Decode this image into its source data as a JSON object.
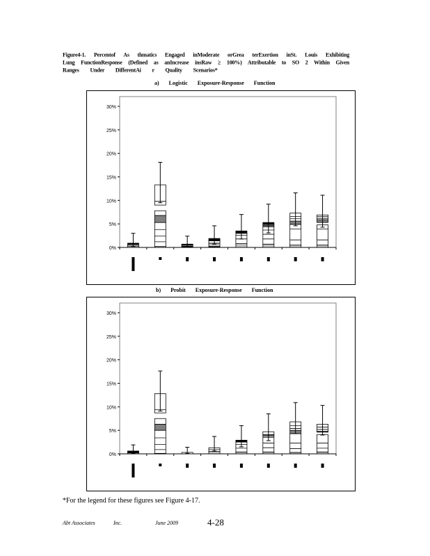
{
  "caption": {
    "lines": [
      "Figure4-1.  Percentof  As thmatics  Engaged  inModerate  orGrea terExertion  inSt. Louis Exhibiting",
      "Lung FunctionResponse  (Defined as anIncrease  insRaw  ≥ 100%)  Attributable  to SO 2 Within  Given",
      "Ranges  Under  DifferentAi r Quality  Scenarios*"
    ]
  },
  "chart_data": [
    {
      "type": "bar",
      "title": "a)  Logistic  Exposure-Response  Function",
      "ylim": [
        0,
        30
      ],
      "yticks": [
        "0%",
        "5%",
        "10%",
        "15%",
        "20%",
        "25%",
        "30%"
      ],
      "colors": {
        "gray": "#808080",
        "lightgray": "#c0c0c0",
        "black": "#000000"
      },
      "bars": [
        {
          "segments": [
            [
              0,
              0.3,
              "lightgray"
            ],
            [
              0.3,
              0.6,
              "white"
            ],
            [
              0.6,
              0.9,
              "black"
            ]
          ],
          "lines": [],
          "whisker": [
            0.2,
            3.0
          ]
        },
        {
          "segments": [
            [
              0,
              0.2,
              "lightgray"
            ],
            [
              0.2,
              5.3,
              "white"
            ],
            [
              5.3,
              6.8,
              "gray"
            ],
            [
              6.8,
              7.8,
              "white"
            ],
            [
              9.0,
              13.3,
              "white"
            ]
          ],
          "lines": [
            1.2,
            2.4,
            3.8,
            9.8
          ],
          "whisker": [
            9.5,
            18.1
          ]
        },
        {
          "segments": [
            [
              0,
              0.3,
              "black"
            ],
            [
              0.3,
              0.5,
              "white"
            ],
            [
              0.5,
              0.7,
              "black"
            ]
          ],
          "lines": [],
          "whisker": [
            0.1,
            2.4
          ]
        },
        {
          "segments": [
            [
              0,
              0.2,
              "black"
            ],
            [
              0.2,
              0.9,
              "lightgray"
            ],
            [
              0.9,
              1.4,
              "white"
            ],
            [
              1.4,
              1.9,
              "black"
            ]
          ],
          "lines": [],
          "whisker": [
            0.7,
            4.6
          ]
        },
        {
          "segments": [
            [
              0,
              0.8,
              "lightgray"
            ],
            [
              0.8,
              3.0,
              "white"
            ],
            [
              3.0,
              3.5,
              "black"
            ]
          ],
          "lines": [
            1.8,
            2.6
          ],
          "whisker": [
            1.8,
            7.0
          ]
        },
        {
          "segments": [
            [
              0,
              0.7,
              "lightgray"
            ],
            [
              0.7,
              4.4,
              "white"
            ],
            [
              4.4,
              4.7,
              "gray"
            ],
            [
              4.7,
              4.9,
              "white"
            ],
            [
              4.9,
              5.3,
              "black"
            ]
          ],
          "lines": [
            1.8,
            2.8,
            3.7
          ],
          "whisker": [
            3.1,
            9.2
          ]
        },
        {
          "segments": [
            [
              0,
              0.5,
              "lightgray"
            ],
            [
              0.5,
              4.9,
              "white"
            ],
            [
              4.9,
              5.6,
              "gray"
            ],
            [
              5.6,
              7.3,
              "white"
            ]
          ],
          "lines": [
            1.6,
            3.9,
            6.1,
            6.6
          ],
          "whisker": [
            4.6,
            11.6
          ]
        },
        {
          "segments": [
            [
              0,
              0.5,
              "lightgray"
            ],
            [
              0.5,
              4.8,
              "white"
            ],
            [
              5.3,
              5.9,
              "gray"
            ],
            [
              5.9,
              6.9,
              "white"
            ]
          ],
          "lines": [
            1.6,
            3.9,
            6.2,
            6.6
          ],
          "whisker": [
            4.3,
            11.1
          ]
        }
      ]
    },
    {
      "type": "bar",
      "title": "b)  Probit  Exposure-Response  Function",
      "ylim": [
        0,
        30
      ],
      "yticks": [
        "0%",
        "5%",
        "10%",
        "15%",
        "20%",
        "25%",
        "30%"
      ],
      "colors": {
        "gray": "#808080",
        "lightgray": "#c0c0c0",
        "black": "#000000"
      },
      "bars": [
        {
          "segments": [
            [
              0,
              0.2,
              "lightgray"
            ],
            [
              0.2,
              0.6,
              "black"
            ]
          ],
          "lines": [],
          "whisker": [
            0.1,
            1.9
          ]
        },
        {
          "segments": [
            [
              0,
              0.1,
              "lightgray"
            ],
            [
              0.1,
              5.0,
              "white"
            ],
            [
              5.0,
              6.3,
              "gray"
            ],
            [
              6.3,
              7.5,
              "white"
            ],
            [
              8.7,
              12.8,
              "white"
            ]
          ],
          "lines": [
            0.9,
            2.0,
            3.4,
            9.4
          ],
          "whisker": [
            9.1,
            17.6
          ]
        },
        {
          "segments": [
            [
              0,
              0.3,
              "white"
            ]
          ],
          "lines": [],
          "whisker": [
            0.1,
            1.4
          ]
        },
        {
          "segments": [
            [
              0,
              0.5,
              "lightgray"
            ],
            [
              0.5,
              1.3,
              "white"
            ]
          ],
          "lines": [
            0.9
          ],
          "whisker": [
            0.6,
            3.7
          ]
        },
        {
          "segments": [
            [
              0,
              0.4,
              "lightgray"
            ],
            [
              0.4,
              2.5,
              "white"
            ],
            [
              2.5,
              2.9,
              "black"
            ]
          ],
          "lines": [
            1.2,
            2.0
          ],
          "whisker": [
            1.5,
            6.0
          ]
        },
        {
          "segments": [
            [
              0,
              0.4,
              "lightgray"
            ],
            [
              0.4,
              3.8,
              "white"
            ],
            [
              3.8,
              4.1,
              "gray"
            ],
            [
              4.1,
              4.7,
              "white"
            ]
          ],
          "lines": [
            1.3,
            2.3,
            3.5
          ],
          "whisker": [
            2.8,
            8.5
          ]
        },
        {
          "segments": [
            [
              0,
              0.3,
              "lightgray"
            ],
            [
              0.3,
              4.3,
              "white"
            ],
            [
              4.3,
              5.0,
              "gray"
            ],
            [
              5.0,
              6.8,
              "white"
            ]
          ],
          "lines": [
            1.1,
            2.3,
            5.4,
            6.0
          ],
          "whisker": [
            4.3,
            10.9
          ]
        },
        {
          "segments": [
            [
              0,
              0.4,
              "lightgray"
            ],
            [
              0.4,
              4.1,
              "white"
            ],
            [
              4.6,
              4.8,
              "gray"
            ],
            [
              4.8,
              6.3,
              "white"
            ]
          ],
          "lines": [
            1.2,
            2.3,
            5.2,
            5.7
          ],
          "whisker": [
            4.0,
            10.3
          ]
        }
      ]
    }
  ],
  "footnote": "*For the legend for these figures see Figure 4-17.",
  "footer": {
    "org": "Abt  Associates",
    "inc": "Inc.",
    "date": "June  2009",
    "page": "4-28"
  }
}
